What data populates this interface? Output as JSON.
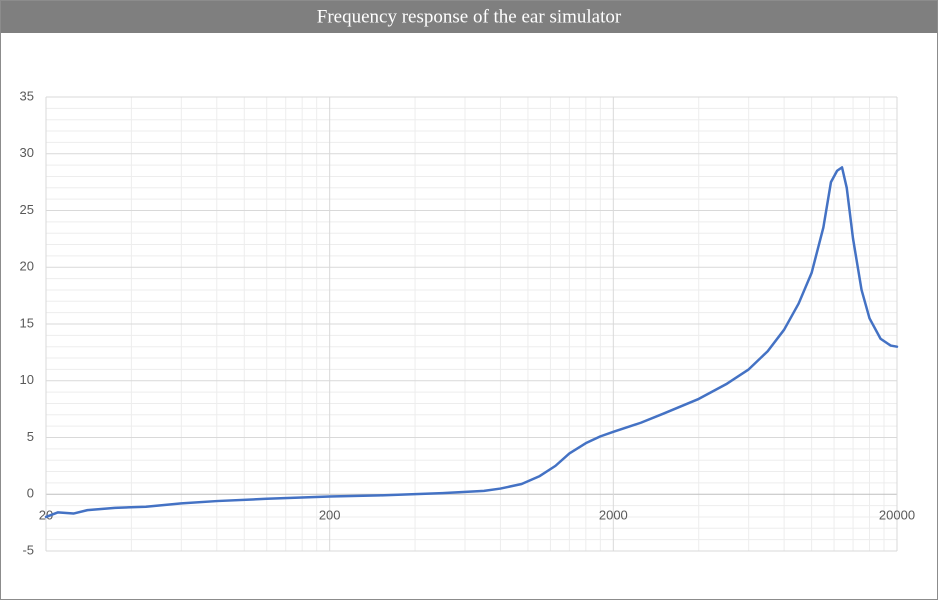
{
  "chart_data": {
    "type": "line",
    "title": "Frequency response of the ear simulator",
    "log_x": true,
    "grid": true,
    "color": "#4472c4",
    "x": [
      20,
      22,
      25,
      28,
      35,
      45,
      60,
      80,
      120,
      200,
      300,
      500,
      700,
      800,
      950,
      1100,
      1250,
      1400,
      1600,
      1800,
      2000,
      2500,
      3000,
      4000,
      5000,
      6000,
      7000,
      8000,
      9000,
      10000,
      11000,
      11700,
      12300,
      12800,
      13300,
      14000,
      15000,
      16000,
      17500,
      19000,
      20000
    ],
    "values": [
      -2.0,
      -1.6,
      -1.7,
      -1.4,
      -1.2,
      -1.1,
      -0.8,
      -0.6,
      -0.4,
      -0.2,
      -0.1,
      0.1,
      0.3,
      0.5,
      0.9,
      1.6,
      2.5,
      3.6,
      4.5,
      5.1,
      5.5,
      6.3,
      7.1,
      8.4,
      9.7,
      11.0,
      12.6,
      14.5,
      16.8,
      19.5,
      23.5,
      27.5,
      28.5,
      28.8,
      27.0,
      22.5,
      18.0,
      15.5,
      13.7,
      13.1,
      13.0
    ],
    "xlim": [
      20,
      20000
    ],
    "xticks": [
      20,
      200,
      2000,
      20000
    ],
    "ylim": [
      -5,
      35
    ],
    "yticks": [
      -5,
      0,
      5,
      10,
      15,
      20,
      25,
      30,
      35
    ]
  }
}
